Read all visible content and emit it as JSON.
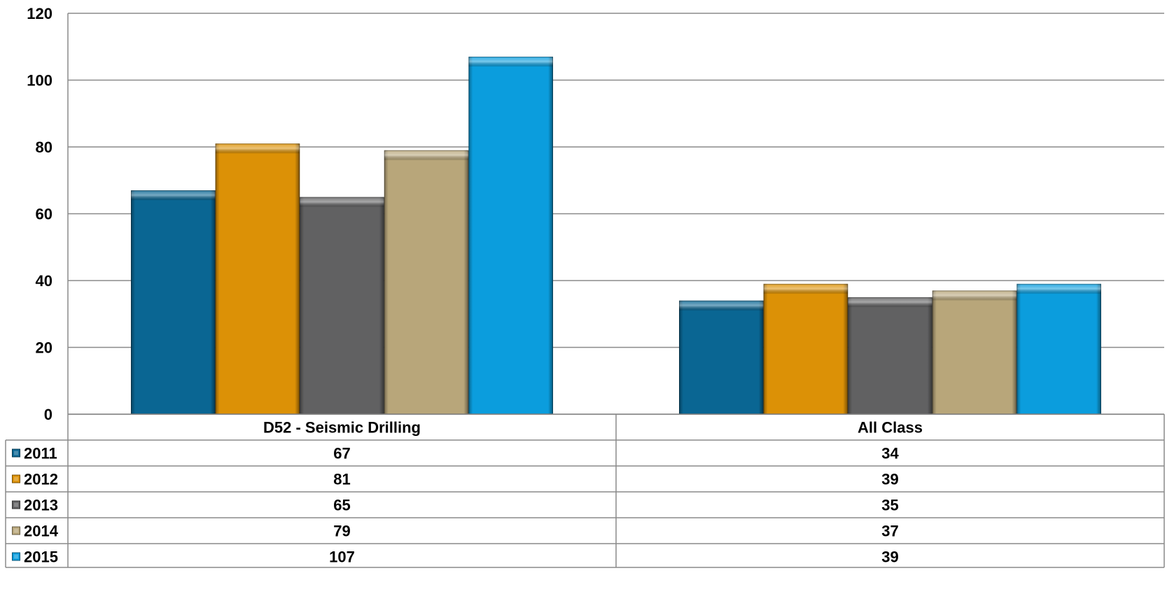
{
  "chart_data": {
    "type": "bar",
    "title": "",
    "xlabel": "",
    "ylabel": "",
    "categories": [
      "D52 - Seismic Drilling",
      "All Class"
    ],
    "ylim": [
      0,
      120
    ],
    "yticks": [
      0,
      20,
      40,
      60,
      80,
      100,
      120
    ],
    "grid": true,
    "legend": "data-table",
    "series": [
      {
        "name": "2011",
        "values": [
          67,
          34
        ],
        "color": "#0a6693"
      },
      {
        "name": "2012",
        "values": [
          81,
          39
        ],
        "color": "#dc9106"
      },
      {
        "name": "2013",
        "values": [
          65,
          35
        ],
        "color": "#616162"
      },
      {
        "name": "2014",
        "values": [
          79,
          37
        ],
        "color": "#b8a67a"
      },
      {
        "name": "2015",
        "values": [
          107,
          39
        ],
        "color": "#0b9ddd"
      }
    ]
  }
}
